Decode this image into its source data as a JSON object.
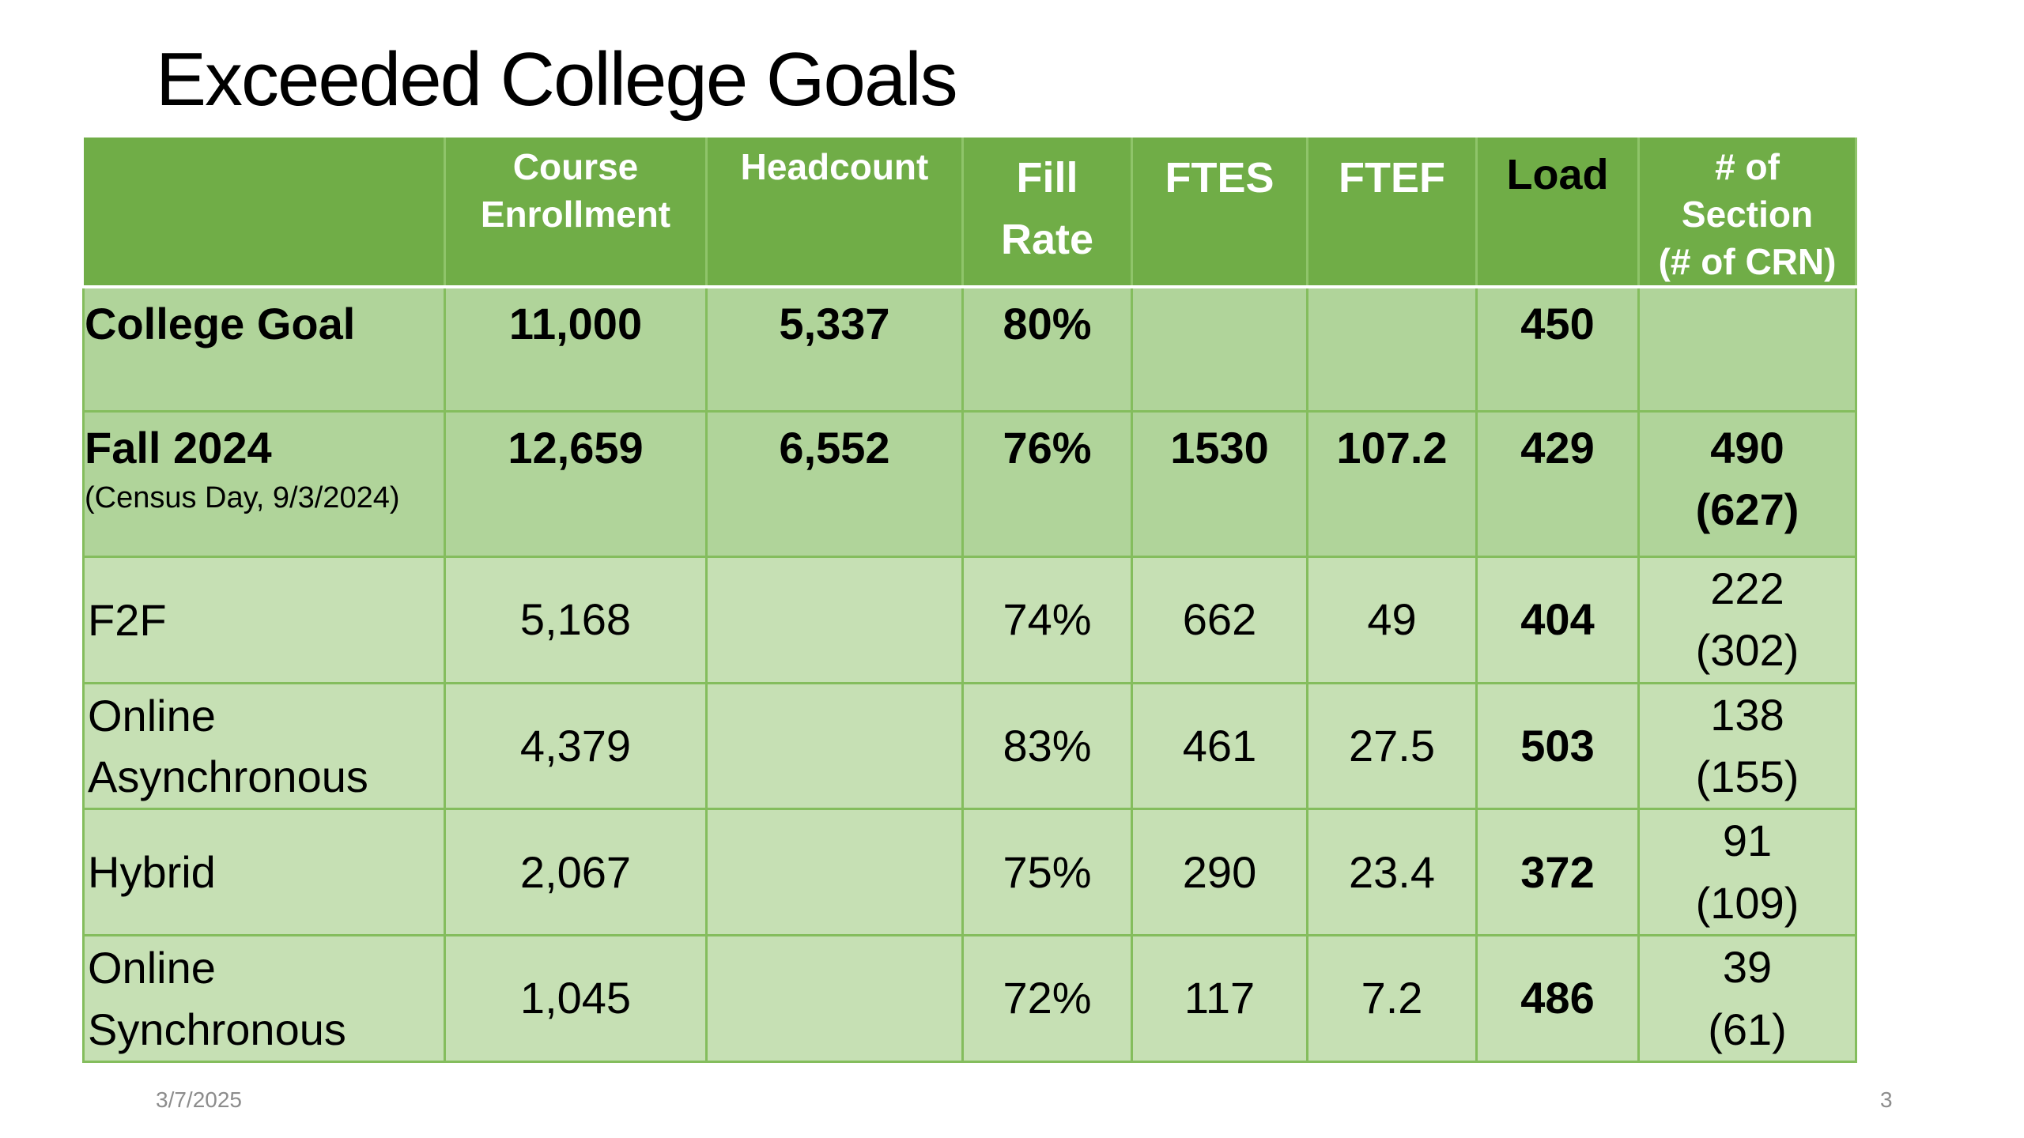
{
  "slide": {
    "title": "Exceeded College Goals",
    "date": "3/7/2025",
    "page_number": "3"
  },
  "colors": {
    "header_bg": "#70ad47",
    "summary_row_bg": "#b0d49a",
    "detail_row_bg": "#c6e0b4",
    "border": "#84bd5d"
  },
  "table": {
    "headers": [
      "",
      "Course\nEnrollment",
      "Headcount",
      "Fill\nRate",
      "FTES",
      "FTEF",
      "Load",
      "# of Section\n(# of CRN)"
    ],
    "rows": [
      {
        "label": "College Goal",
        "sublabel": "",
        "cells": [
          "11,000",
          "5,337",
          "80%",
          "",
          "",
          "450",
          ""
        ]
      },
      {
        "label": "Fall 2024",
        "sublabel": "(Census Day, 9/3/2024)",
        "cells": [
          "12,659",
          "6,552",
          "76%",
          "1530",
          "107.2",
          "429",
          "490\n(627)"
        ]
      },
      {
        "label": "F2F",
        "cells": [
          "5,168",
          "",
          "74%",
          "662",
          "49",
          "404",
          "222\n(302)"
        ]
      },
      {
        "label": "Online\nAsynchronous",
        "cells": [
          "4,379",
          "",
          "83%",
          "461",
          "27.5",
          "503",
          "138\n(155)"
        ]
      },
      {
        "label": "Hybrid",
        "cells": [
          "2,067",
          "",
          "75%",
          "290",
          "23.4",
          "372",
          "91\n(109)"
        ]
      },
      {
        "label": "Online\nSynchronous",
        "cells": [
          "1,045",
          "",
          "72%",
          "117",
          "7.2",
          "486",
          "39\n(61)"
        ]
      }
    ]
  }
}
